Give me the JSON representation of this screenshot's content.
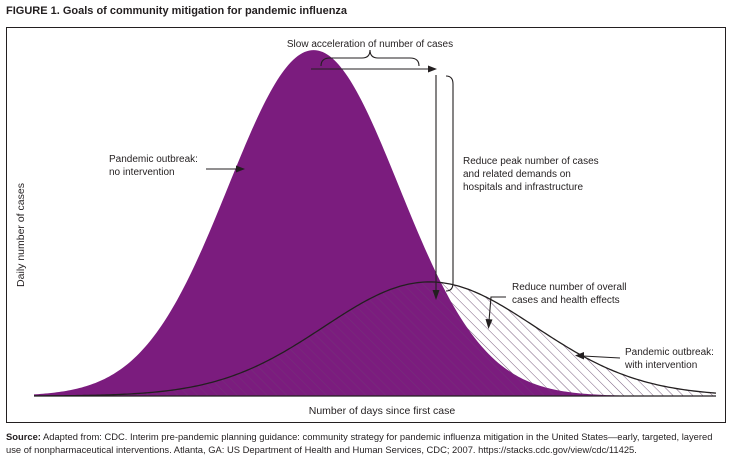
{
  "figure": {
    "title": "FIGURE 1. Goals of community mitigation for pandemic influenza"
  },
  "chart_data": {
    "type": "area",
    "xlabel": "Number of days since first case",
    "ylabel": "Daily number of cases",
    "axis_tick_labels": false,
    "grid": false,
    "series": [
      {
        "name": "Pandemic outbreak: no intervention",
        "fill": "solid",
        "color": "#7b1c7e",
        "shape": "gaussian",
        "peak_x_fraction": 0.41,
        "peak_y_fraction": 0.94,
        "spread_fraction": 0.125
      },
      {
        "name": "Pandemic outbreak: with intervention",
        "fill": "hatched",
        "color": "#7b1c7e",
        "shape": "gaussian",
        "peak_x_fraction": 0.58,
        "peak_y_fraction": 0.31,
        "spread_fraction": 0.155
      }
    ],
    "annotations": {
      "slow_acceleration": "Slow acceleration of number of cases",
      "reduce_peak_1": "Reduce peak number of cases",
      "reduce_peak_2": "and related demands on",
      "reduce_peak_3": "hospitals and infrastructure",
      "reduce_overall_1": "Reduce number of overall",
      "reduce_overall_2": "cases and health effects",
      "no_intervention_1": "Pandemic outbreak:",
      "no_intervention_2": "no intervention",
      "with_intervention_1": "Pandemic outbreak:",
      "with_intervention_2": "with intervention"
    }
  },
  "source": {
    "label": "Source:",
    "text": "Adapted from: CDC. Interim pre-pandemic planning guidance: community strategy for pandemic influenza mitigation in the United States—early, targeted, layered use of nonpharmaceutical interventions. Atlanta, GA: US Department of Health and Human Services, CDC; 2007. https://stacks.cdc.gov/view/cdc/11425."
  },
  "colors": {
    "purple": "#7b1c7e",
    "ink": "#231f20"
  }
}
